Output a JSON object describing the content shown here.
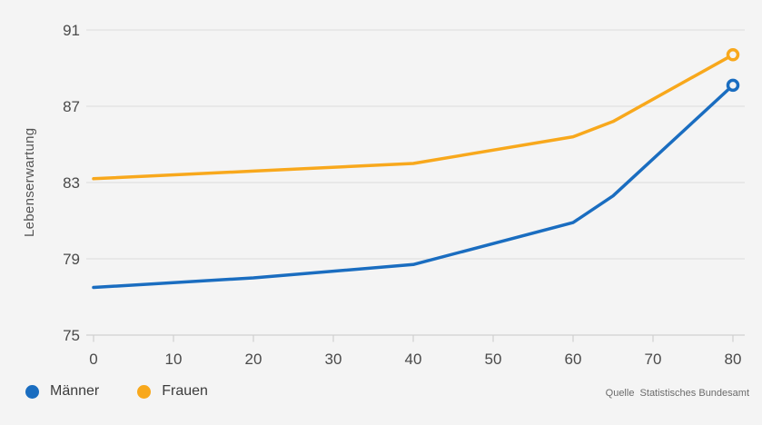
{
  "chart_data": {
    "type": "line",
    "x": [
      0,
      20,
      40,
      60,
      65,
      80
    ],
    "series": [
      {
        "name": "Männer",
        "color": "#1a6dc0",
        "values": [
          77.5,
          78.0,
          78.7,
          80.9,
          82.3,
          88.1
        ]
      },
      {
        "name": "Frauen",
        "color": "#f8a81c",
        "values": [
          83.2,
          83.6,
          84.0,
          85.4,
          86.2,
          89.7
        ]
      }
    ],
    "title": "",
    "xlabel": "",
    "ylabel": "Lebenserwartung",
    "xlim": [
      0,
      80
    ],
    "ylim": [
      75,
      91
    ],
    "xticks": [
      0,
      10,
      20,
      30,
      40,
      50,
      60,
      70,
      80
    ],
    "yticks": [
      75,
      79,
      83,
      87,
      91
    ],
    "grid": "horizontal",
    "legend_position": "bottom-left",
    "end_markers": "open-circle"
  },
  "footer": {
    "source": "Quelle  Statistisches Bundesamt"
  },
  "colors": {
    "background": "#f4f4f4",
    "gridline": "#dcdcdc",
    "axisline": "#c9c9c9",
    "tick_text": "#4a4a4a",
    "axis_title_text": "#555555"
  }
}
